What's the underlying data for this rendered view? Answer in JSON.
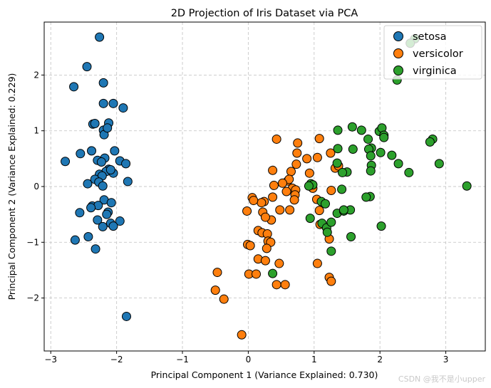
{
  "chart_data": {
    "type": "scatter",
    "title": "2D Projection of Iris Dataset via PCA",
    "xlabel": "Principal Component 1 (Variance Explained: 0.730)",
    "ylabel": "Principal Component 2 (Variance Explained: 0.229)",
    "xlim": [
      -3.1,
      3.6
    ],
    "ylim": [
      -2.95,
      2.95
    ],
    "xticks": [
      -3,
      -2,
      -1,
      0,
      1,
      2,
      3
    ],
    "yticks": [
      -2,
      -1,
      0,
      1,
      2
    ],
    "xtick_labels": [
      "−3",
      "−2",
      "−1",
      "0",
      "1",
      "2",
      "3"
    ],
    "ytick_labels": [
      "−2",
      "−1",
      "0",
      "1",
      "2"
    ],
    "grid": true,
    "legend_position": "top-right",
    "series": [
      {
        "name": "setosa",
        "color": "#1f77b4",
        "points": [
          [
            -2.26,
            2.68
          ],
          [
            -2.45,
            2.15
          ],
          [
            -2.65,
            1.79
          ],
          [
            -2.2,
            1.86
          ],
          [
            -2.2,
            1.49
          ],
          [
            -2.05,
            1.49
          ],
          [
            -1.9,
            1.41
          ],
          [
            -2.12,
            1.14
          ],
          [
            -2.36,
            1.12
          ],
          [
            -2.33,
            1.13
          ],
          [
            -2.2,
            1.01
          ],
          [
            -2.19,
            0.93
          ],
          [
            -2.14,
            1.05
          ],
          [
            -2.03,
            0.64
          ],
          [
            -2.38,
            0.64
          ],
          [
            -2.55,
            0.59
          ],
          [
            -2.18,
            0.51
          ],
          [
            -2.29,
            0.47
          ],
          [
            -2.23,
            0.44
          ],
          [
            -1.95,
            0.46
          ],
          [
            -1.86,
            0.41
          ],
          [
            -2.78,
            0.45
          ],
          [
            -2.12,
            0.31
          ],
          [
            -2.16,
            0.27
          ],
          [
            -2.05,
            0.24
          ],
          [
            -2.26,
            0.22
          ],
          [
            -2.22,
            0.19
          ],
          [
            -2.33,
            0.13
          ],
          [
            -2.44,
            0.05
          ],
          [
            -2.27,
            0.08
          ],
          [
            -1.83,
            0.09
          ],
          [
            -2.21,
            0.01
          ],
          [
            -2.19,
            -0.24
          ],
          [
            -2.08,
            -0.29
          ],
          [
            -2.37,
            -0.35
          ],
          [
            -2.28,
            -0.34
          ],
          [
            -2.39,
            -0.38
          ],
          [
            -2.56,
            -0.47
          ],
          [
            -2.13,
            -0.46
          ],
          [
            -2.15,
            -0.5
          ],
          [
            -2.29,
            -0.6
          ],
          [
            -1.95,
            -0.62
          ],
          [
            -2.09,
            -0.66
          ],
          [
            -2.05,
            -0.71
          ],
          [
            -2.21,
            -0.72
          ],
          [
            -2.43,
            -0.9
          ],
          [
            -2.63,
            -0.96
          ],
          [
            -2.32,
            -1.12
          ],
          [
            -1.85,
            -2.33
          ],
          [
            -2.09,
            0.3
          ]
        ]
      },
      {
        "name": "versicolor",
        "color": "#ff7f0e",
        "points": [
          [
            0.43,
            0.85
          ],
          [
            0.75,
            0.78
          ],
          [
            0.74,
            0.6
          ],
          [
            0.89,
            0.5
          ],
          [
            0.73,
            0.4
          ],
          [
            0.93,
            0.24
          ],
          [
            0.98,
            -0.03
          ],
          [
            1.05,
            0.52
          ],
          [
            1.08,
            0.86
          ],
          [
            1.25,
            0.6
          ],
          [
            1.32,
            0.33
          ],
          [
            1.37,
            0.37
          ],
          [
            1.26,
            -0.07
          ],
          [
            1.04,
            -0.23
          ],
          [
            1.08,
            -0.43
          ],
          [
            0.65,
            0.27
          ],
          [
            0.6,
            0.1
          ],
          [
            0.62,
            0.13
          ],
          [
            0.67,
            -0.03
          ],
          [
            0.72,
            -0.06
          ],
          [
            0.71,
            -0.15
          ],
          [
            0.7,
            -0.24
          ],
          [
            0.58,
            -0.09
          ],
          [
            0.52,
            0.06
          ],
          [
            0.37,
            0.29
          ],
          [
            0.39,
            0.02
          ],
          [
            0.37,
            -0.19
          ],
          [
            0.24,
            -0.27
          ],
          [
            0.2,
            -0.29
          ],
          [
            0.06,
            -0.2
          ],
          [
            0.08,
            -0.25
          ],
          [
            0.22,
            -0.46
          ],
          [
            -0.02,
            -0.44
          ],
          [
            0.48,
            -0.42
          ],
          [
            0.63,
            -0.42
          ],
          [
            0.35,
            -0.6
          ],
          [
            0.26,
            -0.55
          ],
          [
            0.15,
            -0.79
          ],
          [
            0.21,
            -0.83
          ],
          [
            0.29,
            -0.85
          ],
          [
            0.3,
            -0.98
          ],
          [
            0.34,
            -1.0
          ],
          [
            -0.01,
            -1.04
          ],
          [
            0.03,
            -1.06
          ],
          [
            0.28,
            -1.11
          ],
          [
            0.15,
            -1.3
          ],
          [
            0.26,
            -1.33
          ],
          [
            0.47,
            -1.38
          ],
          [
            1.05,
            -1.38
          ],
          [
            1.23,
            -0.94
          ],
          [
            1.09,
            -0.68
          ],
          [
            1.23,
            -1.63
          ],
          [
            1.26,
            -1.7
          ],
          [
            -0.47,
            -1.54
          ],
          [
            -0.5,
            -1.86
          ],
          [
            -0.37,
            -2.02
          ],
          [
            0.01,
            -1.57
          ],
          [
            0.12,
            -1.57
          ],
          [
            0.43,
            -1.76
          ],
          [
            0.56,
            -1.76
          ],
          [
            -0.1,
            -2.66
          ]
        ]
      },
      {
        "name": "virginica",
        "color": "#2ca02c",
        "points": [
          [
            2.53,
            2.65
          ],
          [
            2.46,
            2.57
          ],
          [
            2.26,
            1.91
          ],
          [
            1.99,
            0.99
          ],
          [
            2.03,
            1.05
          ],
          [
            2.06,
            0.92
          ],
          [
            2.06,
            0.88
          ],
          [
            1.72,
            1.01
          ],
          [
            1.58,
            1.07
          ],
          [
            1.82,
            0.85
          ],
          [
            1.36,
            1.01
          ],
          [
            2.8,
            0.85
          ],
          [
            2.76,
            0.8
          ],
          [
            1.87,
            0.69
          ],
          [
            1.83,
            0.67
          ],
          [
            1.59,
            0.67
          ],
          [
            1.36,
            0.68
          ],
          [
            2.01,
            0.61
          ],
          [
            2.18,
            0.56
          ],
          [
            1.86,
            0.55
          ],
          [
            2.28,
            0.41
          ],
          [
            1.35,
            0.42
          ],
          [
            1.87,
            0.38
          ],
          [
            1.86,
            0.28
          ],
          [
            2.44,
            0.25
          ],
          [
            1.5,
            0.26
          ],
          [
            1.43,
            0.25
          ],
          [
            2.9,
            0.41
          ],
          [
            3.32,
            0.01
          ],
          [
            0.95,
            0.05
          ],
          [
            0.98,
            0.03
          ],
          [
            0.92,
            0.01
          ],
          [
            1.42,
            -0.05
          ],
          [
            1.11,
            -0.27
          ],
          [
            1.17,
            -0.31
          ],
          [
            1.85,
            -0.18
          ],
          [
            1.79,
            -0.19
          ],
          [
            0.94,
            -0.57
          ],
          [
            1.12,
            -0.66
          ],
          [
            1.35,
            -0.48
          ],
          [
            1.45,
            -0.44
          ],
          [
            1.55,
            -0.42
          ],
          [
            1.19,
            -0.74
          ],
          [
            1.2,
            -0.82
          ],
          [
            2.02,
            -0.71
          ],
          [
            1.56,
            -0.9
          ],
          [
            1.26,
            -1.16
          ],
          [
            0.37,
            -1.56
          ],
          [
            1.26,
            -0.64
          ],
          [
            1.45,
            -0.42
          ]
        ]
      }
    ]
  },
  "watermark": "CSDN @我不是小upper"
}
